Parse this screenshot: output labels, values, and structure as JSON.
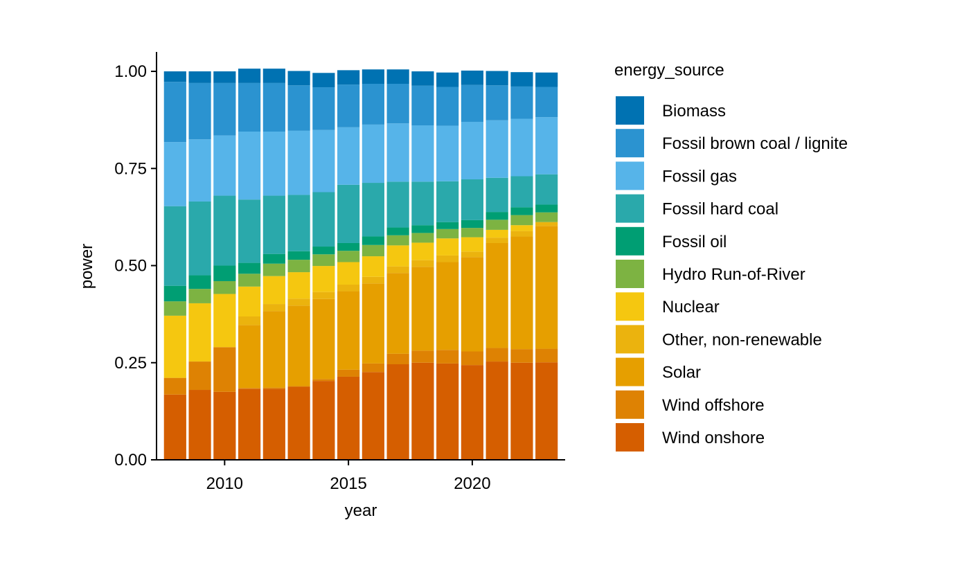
{
  "chart_data": {
    "type": "bar",
    "stacked": true,
    "xlabel": "year",
    "ylabel": "power",
    "ylim": [
      0,
      1.05
    ],
    "xlim": [
      2007.25,
      2023.75
    ],
    "x_ticks": [
      2010,
      2015,
      2020
    ],
    "x_tick_labels": [
      "2010",
      "2015",
      "2020"
    ],
    "y_ticks": [
      0,
      0.25,
      0.5,
      0.75,
      1.0
    ],
    "y_tick_labels": [
      "0.00",
      "0.25",
      "0.50",
      "0.75",
      "1.00"
    ],
    "grid": false,
    "legend": {
      "title": "energy_source",
      "position": "right"
    },
    "x": [
      2008,
      2009,
      2010,
      2011,
      2012,
      2013,
      2014,
      2015,
      2016,
      2017,
      2018,
      2019,
      2020,
      2021,
      2022,
      2023
    ],
    "stack_order": "bottom-to-top: Wind onshore first, Biomass last",
    "series": [
      {
        "name": "Biomass",
        "color": "#0072B2",
        "values": [
          0.027,
          0.03,
          0.03,
          0.037,
          0.037,
          0.037,
          0.037,
          0.037,
          0.037,
          0.037,
          0.037,
          0.037,
          0.037,
          0.037,
          0.037,
          0.037
        ]
      },
      {
        "name": "Fossil brown coal / lignite",
        "color": "#2B93D0",
        "values": [
          0.155,
          0.145,
          0.135,
          0.125,
          0.125,
          0.117,
          0.11,
          0.11,
          0.105,
          0.102,
          0.102,
          0.1,
          0.095,
          0.09,
          0.083,
          0.078
        ]
      },
      {
        "name": "Fossil gas",
        "color": "#56B4E9",
        "values": [
          0.165,
          0.16,
          0.155,
          0.175,
          0.165,
          0.165,
          0.16,
          0.148,
          0.15,
          0.15,
          0.145,
          0.143,
          0.148,
          0.148,
          0.148,
          0.147
        ]
      },
      {
        "name": "Fossil hard coal",
        "color": "#2AA9AB",
        "values": [
          0.205,
          0.19,
          0.18,
          0.163,
          0.15,
          0.145,
          0.14,
          0.15,
          0.138,
          0.118,
          0.112,
          0.105,
          0.105,
          0.088,
          0.08,
          0.078
        ]
      },
      {
        "name": "Fossil oil",
        "color": "#009E73",
        "values": [
          0.04,
          0.035,
          0.04,
          0.028,
          0.025,
          0.022,
          0.02,
          0.02,
          0.022,
          0.02,
          0.02,
          0.018,
          0.02,
          0.02,
          0.02,
          0.02
        ]
      },
      {
        "name": "Hydro Run-of-River",
        "color": "#7DB342",
        "values": [
          0.037,
          0.037,
          0.033,
          0.033,
          0.032,
          0.032,
          0.03,
          0.029,
          0.029,
          0.026,
          0.025,
          0.024,
          0.024,
          0.026,
          0.026,
          0.025
        ]
      },
      {
        "name": "Nuclear",
        "color": "#F5C710",
        "values": [
          0.16,
          0.15,
          0.137,
          0.077,
          0.072,
          0.068,
          0.067,
          0.058,
          0.053,
          0.054,
          0.045,
          0.044,
          0.037,
          0.02,
          0.015,
          0.0
        ]
      },
      {
        "name": "Other, non-renewable",
        "color": "#EBB30E",
        "values": [
          0.0,
          0.0,
          0.0,
          0.022,
          0.018,
          0.018,
          0.018,
          0.017,
          0.017,
          0.017,
          0.017,
          0.017,
          0.014,
          0.014,
          0.014,
          0.01
        ]
      },
      {
        "name": "Solar",
        "color": "#E69F00",
        "values": [
          0.0,
          0.0,
          0.0,
          0.162,
          0.197,
          0.207,
          0.206,
          0.202,
          0.206,
          0.208,
          0.216,
          0.226,
          0.243,
          0.27,
          0.29,
          0.316
        ]
      },
      {
        "name": "Wind offshore",
        "color": "#DE8203",
        "values": [
          0.043,
          0.073,
          0.115,
          0.002,
          0.003,
          0.002,
          0.005,
          0.018,
          0.022,
          0.027,
          0.031,
          0.035,
          0.035,
          0.035,
          0.035,
          0.035
        ]
      },
      {
        "name": "Wind onshore",
        "color": "#D55E00",
        "values": [
          0.168,
          0.18,
          0.175,
          0.183,
          0.183,
          0.188,
          0.203,
          0.214,
          0.226,
          0.246,
          0.25,
          0.248,
          0.244,
          0.253,
          0.25,
          0.251
        ]
      }
    ]
  }
}
